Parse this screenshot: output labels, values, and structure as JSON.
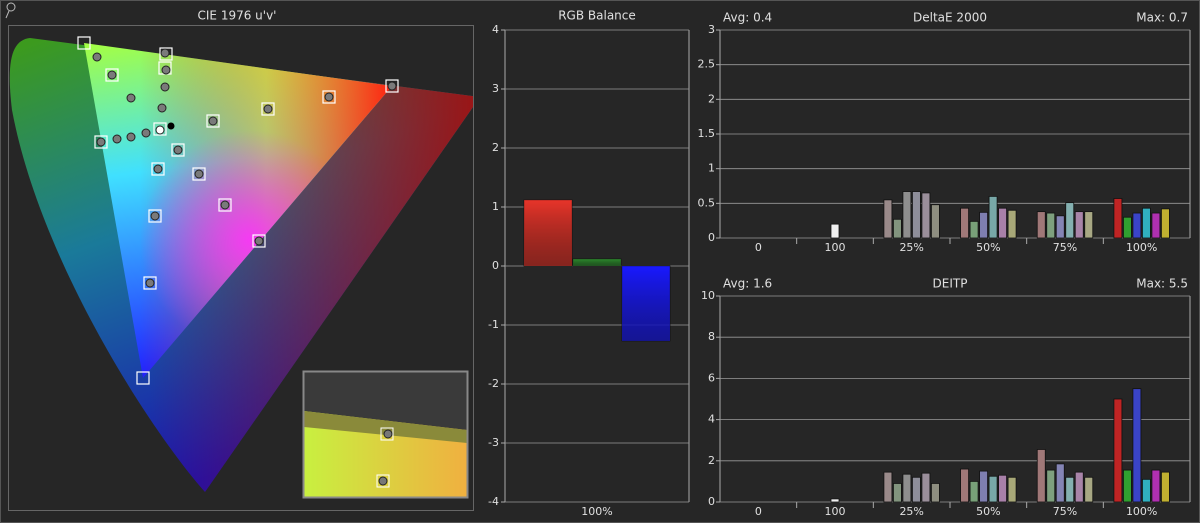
{
  "chart_data": [
    {
      "type": "chromaticity",
      "title": "CIE 1976 u'v'"
    },
    {
      "type": "bar",
      "title": "RGB Balance",
      "categories": [
        "100%"
      ],
      "ylim": [
        -4,
        4
      ],
      "yticks": [
        -4,
        -3,
        -2,
        -1,
        0,
        1,
        2,
        3,
        4
      ],
      "grid": true,
      "series": [
        {
          "color": "#e8342a",
          "values": [
            1.12
          ]
        },
        {
          "color": "#2e8a2e",
          "values": [
            0.12
          ]
        },
        {
          "color": "#1a1aff",
          "values": [
            -1.27
          ]
        }
      ]
    },
    {
      "type": "bar",
      "title": "DeltaE 2000",
      "annotations": [
        "Avg: 0.4",
        "Max: 0.7"
      ],
      "categories": [
        "0",
        "100",
        "25%",
        "50%",
        "75%",
        "100%"
      ],
      "ylim": [
        0,
        3
      ],
      "yticks": [
        0,
        0.5,
        1,
        1.5,
        2,
        2.5,
        3
      ],
      "grid": true,
      "series": [
        {
          "color": "#f0f0f0",
          "values": [
            null,
            0.2,
            null,
            null,
            null,
            null
          ]
        },
        {
          "colors": [
            null,
            null,
            "#9a8a8a",
            "#a07878",
            "#a07878",
            "#c02424"
          ],
          "values": [
            null,
            null,
            0.55,
            0.43,
            0.38,
            0.57
          ]
        },
        {
          "colors": [
            null,
            null,
            "#82947e",
            "#78a078",
            "#7ea07e",
            "#30a030"
          ],
          "values": [
            null,
            null,
            0.27,
            0.24,
            0.36,
            0.3
          ]
        },
        {
          "colors": [
            null,
            null,
            "#8e8e8e",
            "#7e7eb0",
            "#8484b4",
            "#3a44c8"
          ],
          "values": [
            null,
            null,
            0.67,
            0.37,
            0.32,
            0.36
          ]
        },
        {
          "colors": [
            null,
            null,
            "#8e8e9a",
            "#78a8a8",
            "#84b0b0",
            "#30b0c0"
          ],
          "values": [
            null,
            null,
            0.67,
            0.6,
            0.51,
            0.43
          ]
        },
        {
          "colors": [
            null,
            null,
            "#9a8e9a",
            "#a880a8",
            "#a884a8",
            "#b030b0"
          ],
          "values": [
            null,
            null,
            0.65,
            0.43,
            0.38,
            0.36
          ]
        },
        {
          "colors": [
            null,
            null,
            "#8e8e80",
            "#a8a878",
            "#a8a884",
            "#c0b030"
          ],
          "values": [
            null,
            null,
            0.48,
            0.4,
            0.38,
            0.42
          ]
        }
      ]
    },
    {
      "type": "bar",
      "title": "DEITP",
      "annotations": [
        "Avg: 1.6",
        "Max: 5.5"
      ],
      "categories": [
        "0",
        "100",
        "25%",
        "50%",
        "75%",
        "100%"
      ],
      "ylim": [
        0,
        10
      ],
      "yticks": [
        0,
        2,
        4,
        6,
        8,
        10
      ],
      "grid": true,
      "series": [
        {
          "color": "#f0f0f0",
          "values": [
            null,
            0.15,
            null,
            null,
            null,
            null
          ]
        },
        {
          "colors": [
            null,
            null,
            "#9a8a8a",
            "#a07878",
            "#a07878",
            "#c02424"
          ],
          "values": [
            null,
            null,
            1.45,
            1.6,
            2.55,
            5.0
          ]
        },
        {
          "colors": [
            null,
            null,
            "#82947e",
            "#78a078",
            "#7ea07e",
            "#30a030"
          ],
          "values": [
            null,
            null,
            0.9,
            1.0,
            1.55,
            1.55
          ]
        },
        {
          "colors": [
            null,
            null,
            "#8e8e8e",
            "#7e7eb0",
            "#8484b4",
            "#3a44c8"
          ],
          "values": [
            null,
            null,
            1.35,
            1.5,
            1.85,
            5.5
          ]
        },
        {
          "colors": [
            null,
            null,
            "#8e8e9a",
            "#78a8a8",
            "#84b0b0",
            "#30b0c0"
          ],
          "values": [
            null,
            null,
            1.2,
            1.25,
            1.2,
            1.1
          ]
        },
        {
          "colors": [
            null,
            null,
            "#9a8e9a",
            "#a880a8",
            "#a884a8",
            "#b030b0"
          ],
          "values": [
            null,
            null,
            1.4,
            1.3,
            1.45,
            1.55
          ]
        },
        {
          "colors": [
            null,
            null,
            "#8e8e80",
            "#a8a878",
            "#a8a884",
            "#c0b030"
          ],
          "values": [
            null,
            null,
            0.9,
            1.2,
            1.2,
            1.45
          ]
        }
      ]
    }
  ]
}
